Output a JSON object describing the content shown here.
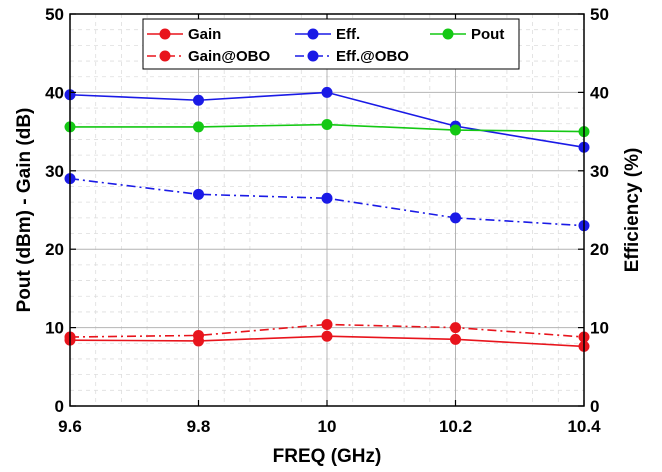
{
  "chart_data": {
    "type": "line",
    "xlabel": "FREQ (GHz)",
    "ylabel_left": "Pout (dBm) - Gain (dB)",
    "ylabel_right": "Efficiency (%)",
    "x": [
      9.6,
      9.8,
      10,
      10.2,
      10.4
    ],
    "x_tick_labels": [
      "9.6",
      "9.8",
      "10",
      "10.2",
      "10.4"
    ],
    "xlim": [
      9.6,
      10.4
    ],
    "ylim_left": [
      0,
      50
    ],
    "ylim_right": [
      0,
      50
    ],
    "y_ticks": [
      "0",
      "10",
      "20",
      "30",
      "40",
      "50"
    ],
    "grid": true,
    "minor_grid": true,
    "legend_position": "top",
    "series": [
      {
        "name": "Gain",
        "axis": "left",
        "color": "#e8141c",
        "dash": "solid",
        "values": [
          8.4,
          8.3,
          8.9,
          8.5,
          7.6
        ]
      },
      {
        "name": "Eff.",
        "axis": "right",
        "color": "#1a1ae6",
        "dash": "solid",
        "values": [
          39.7,
          39,
          40,
          35.7,
          33
        ]
      },
      {
        "name": "Pout",
        "axis": "left",
        "color": "#14c814",
        "dash": "solid",
        "values": [
          35.6,
          35.6,
          35.9,
          35.2,
          35
        ]
      },
      {
        "name": "Gain@OBO",
        "axis": "left",
        "color": "#e8141c",
        "dash": "dashdot",
        "values": [
          8.8,
          9.0,
          10.4,
          10.0,
          8.8
        ]
      },
      {
        "name": "Eff.@OBO",
        "axis": "right",
        "color": "#1a1ae6",
        "dash": "dashdot",
        "values": [
          29,
          27,
          26.5,
          24,
          23
        ]
      }
    ]
  }
}
